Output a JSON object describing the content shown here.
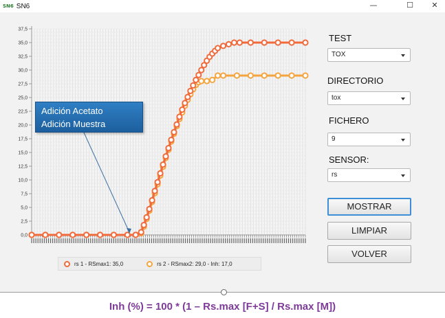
{
  "window": {
    "icon_text": "SN6",
    "title": "SN6",
    "minimize_glyph": "—",
    "maximize_glyph": "☐",
    "close_glyph": "✕"
  },
  "controls": {
    "test_label": "TEST",
    "test_value": "TOX",
    "directorio_label": "DIRECTORIO",
    "directorio_value": "tox",
    "fichero_label": "FICHERO",
    "fichero_value": "9",
    "sensor_label": "SENSOR:",
    "sensor_value": "rs",
    "mostrar_label": "MOSTRAR",
    "limpiar_label": "LIMPIAR",
    "volver_label": "VOLVER"
  },
  "annotation": {
    "line1": "Adición Acetato",
    "line2": "Adición Muestra"
  },
  "formula": "Inh (%) = 100 * (1 – Rs.max [F+S] / Rs.max [M])",
  "colors": {
    "series1": "#f06a3c",
    "series2": "#f5a540",
    "formula": "#7e3a99",
    "callout": "#2f7fc4"
  },
  "chart_data": {
    "type": "line",
    "ylim": [
      0,
      37.5
    ],
    "yticks": [
      "0,0",
      "2,5",
      "5,0",
      "7,5",
      "10,0",
      "12,5",
      "15,0",
      "17,5",
      "20,0",
      "22,5",
      "25,0",
      "27,5",
      "30,0",
      "32,5",
      "35,0",
      "37,5"
    ],
    "xlim": [
      0,
      100
    ],
    "grid": true,
    "legend_position": "bottom",
    "series": [
      {
        "name": "rs 1 - RSmax1: 35,0",
        "x": [
          0,
          5,
          10,
          15,
          20,
          25,
          30,
          35,
          38,
          40,
          41,
          42,
          43,
          44,
          45,
          46,
          47,
          48,
          49,
          50,
          51,
          52,
          53,
          54,
          55,
          56,
          57,
          58,
          59,
          60,
          61,
          62,
          63,
          64,
          65,
          66,
          67,
          68,
          70,
          72,
          74,
          76,
          80,
          85,
          90,
          95,
          100
        ],
        "y": [
          0,
          0,
          0,
          0,
          0,
          0,
          0,
          0,
          0,
          0.5,
          1.8,
          3.2,
          4.7,
          6.3,
          8.0,
          9.6,
          11.2,
          12.8,
          14.3,
          15.8,
          17.3,
          18.7,
          20.1,
          21.5,
          22.8,
          24.0,
          25.1,
          26.2,
          27.2,
          28.2,
          29.1,
          30.0,
          30.9,
          31.7,
          32.4,
          33.0,
          33.5,
          34.0,
          34.4,
          34.7,
          35.0,
          35.0,
          35.0,
          35.0,
          35.0,
          35.0,
          35.0
        ]
      },
      {
        "name": "rs 2 - RSmax2: 29,0 - Inh: 17,0",
        "x": [
          0,
          5,
          10,
          15,
          20,
          25,
          30,
          35,
          38,
          40,
          41,
          42,
          43,
          44,
          45,
          46,
          47,
          48,
          49,
          50,
          51,
          52,
          53,
          54,
          55,
          56,
          57,
          58,
          59,
          60,
          61,
          62,
          64,
          66,
          68,
          70,
          75,
          80,
          85,
          90,
          95,
          100
        ],
        "y": [
          0,
          0,
          0,
          0,
          0,
          0,
          0,
          0,
          0,
          0.3,
          1.5,
          2.9,
          4.4,
          6.0,
          7.6,
          9.2,
          10.8,
          12.4,
          14.0,
          15.5,
          17.0,
          18.4,
          19.8,
          21.1,
          22.3,
          23.5,
          24.6,
          25.6,
          26.5,
          27.3,
          27.8,
          28.0,
          28.0,
          28.2,
          29.0,
          29.0,
          29.0,
          29.0,
          29.0,
          29.0,
          29.0,
          29.0
        ]
      }
    ]
  }
}
